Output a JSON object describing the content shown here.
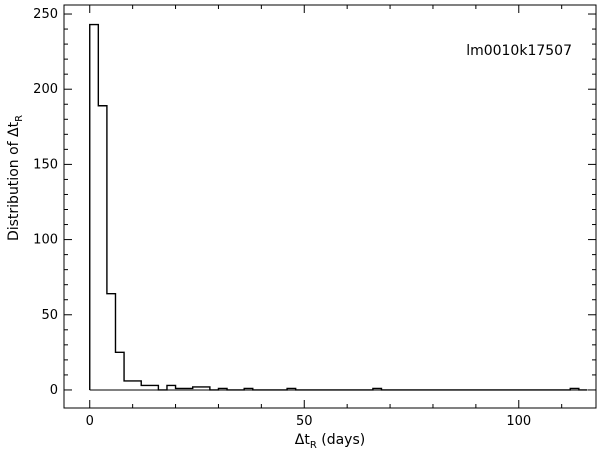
{
  "chart_data": {
    "type": "histogram",
    "annotation": "lm0010k17507",
    "xlabel": {
      "main": "Δt",
      "sub": "R",
      "suffix": " (days)"
    },
    "ylabel": {
      "main": "Distribution of Δt",
      "sub": "R"
    },
    "xlim": [
      -6,
      118
    ],
    "ylim": [
      -12,
      256
    ],
    "x_ticks": [
      0,
      50,
      100
    ],
    "y_ticks": [
      0,
      50,
      100,
      150,
      200,
      250
    ],
    "bin_width": 2,
    "bins": [
      {
        "x": 0,
        "count": 243
      },
      {
        "x": 2,
        "count": 189
      },
      {
        "x": 4,
        "count": 64
      },
      {
        "x": 6,
        "count": 25
      },
      {
        "x": 8,
        "count": 6
      },
      {
        "x": 10,
        "count": 6
      },
      {
        "x": 12,
        "count": 3
      },
      {
        "x": 14,
        "count": 3
      },
      {
        "x": 16,
        "count": 0
      },
      {
        "x": 18,
        "count": 3
      },
      {
        "x": 20,
        "count": 1
      },
      {
        "x": 22,
        "count": 1
      },
      {
        "x": 24,
        "count": 2
      },
      {
        "x": 26,
        "count": 2
      },
      {
        "x": 28,
        "count": 0
      },
      {
        "x": 30,
        "count": 1
      },
      {
        "x": 32,
        "count": 0
      },
      {
        "x": 34,
        "count": 0
      },
      {
        "x": 36,
        "count": 1
      },
      {
        "x": 38,
        "count": 0
      },
      {
        "x": 40,
        "count": 0
      },
      {
        "x": 42,
        "count": 0
      },
      {
        "x": 44,
        "count": 0
      },
      {
        "x": 46,
        "count": 1
      },
      {
        "x": 48,
        "count": 0
      },
      {
        "x": 66,
        "count": 1
      },
      {
        "x": 68,
        "count": 0
      },
      {
        "x": 112,
        "count": 1
      },
      {
        "x": 114,
        "count": 0
      }
    ],
    "x_end": 116,
    "grid": false,
    "legend": "none"
  }
}
